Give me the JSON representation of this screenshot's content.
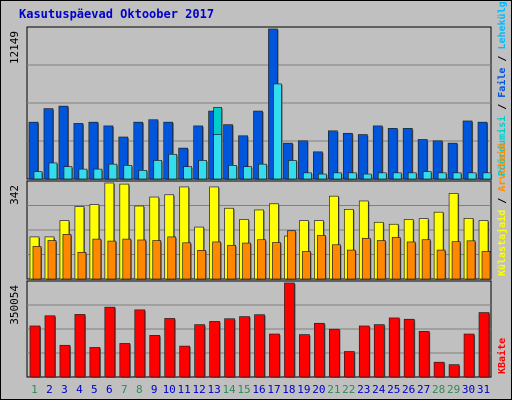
{
  "title": "Kasutuspäevad Oktoober 2017",
  "colors": {
    "background": "#c0c0c0",
    "title": "#0000cc",
    "grid": "#808080",
    "weekday": "#0000cc",
    "weekend": "#2e8b57"
  },
  "chart_data": [
    {
      "type": "bar",
      "name": "top",
      "y_tick_label": "12149",
      "ylim": [
        0,
        12149
      ],
      "categories": [
        "1",
        "2",
        "3",
        "4",
        "5",
        "6",
        "7",
        "8",
        "9",
        "10",
        "11",
        "12",
        "13",
        "14",
        "15",
        "16",
        "17",
        "18",
        "19",
        "20",
        "21",
        "22",
        "23",
        "24",
        "25",
        "26",
        "27",
        "28",
        "29",
        "30",
        "31"
      ],
      "weekend_days": [
        "1",
        "7",
        "8",
        "14",
        "15",
        "21",
        "22",
        "28",
        "29"
      ],
      "legend": [
        "Pöördumisi",
        "Faile",
        "Lehekülgi"
      ],
      "legend_colors": [
        "#00cccc",
        "#0055dd",
        "#00bbff"
      ],
      "series": [
        {
          "color": "#0055dd",
          "values": [
            4600,
            5700,
            5900,
            4500,
            4600,
            4300,
            3400,
            4600,
            4800,
            4600,
            2500,
            4300,
            5500,
            4400,
            3500,
            5500,
            12149,
            2900,
            3100,
            2200,
            3900,
            3700,
            3600,
            4300,
            4100,
            4100,
            3200,
            3100,
            2900,
            4700,
            4600
          ]
        },
        {
          "color": "#00cccc",
          "values": [
            0,
            0,
            0,
            0,
            0,
            0,
            0,
            0,
            0,
            0,
            0,
            0,
            5800,
            0,
            0,
            0,
            0,
            0,
            0,
            0,
            0,
            0,
            0,
            0,
            0,
            0,
            0,
            0,
            0,
            0,
            0
          ]
        },
        {
          "color": "#33ddee",
          "values": [
            600,
            1300,
            1000,
            800,
            800,
            1200,
            1100,
            700,
            1500,
            2000,
            1000,
            1500,
            3600,
            1100,
            1000,
            1200,
            7700,
            1500,
            500,
            400,
            500,
            500,
            400,
            500,
            500,
            500,
            600,
            500,
            500,
            500,
            500
          ]
        }
      ]
    },
    {
      "type": "bar",
      "name": "middle",
      "y_tick_label": "342",
      "ylim": [
        0,
        342
      ],
      "legend": [
        "Külastajaid",
        "Arvuteid"
      ],
      "legend_colors": [
        "#ffff00",
        "#ff8c00"
      ],
      "series": [
        {
          "color": "#ffff00",
          "values": [
            150,
            150,
            208,
            258,
            265,
            342,
            338,
            260,
            292,
            300,
            328,
            185,
            328,
            252,
            212,
            246,
            268,
            153,
            208,
            208,
            295,
            248,
            278,
            202,
            195,
            212,
            215,
            238,
            305,
            216,
            208
          ]
        },
        {
          "color": "#ff8800",
          "values": [
            116,
            137,
            159,
            95,
            142,
            135,
            142,
            139,
            137,
            150,
            129,
            102,
            132,
            120,
            128,
            140,
            130,
            172,
            98,
            155,
            122,
            103,
            145,
            137,
            148,
            132,
            140,
            103,
            133,
            136,
            98
          ]
        }
      ]
    },
    {
      "type": "bar",
      "name": "bottom",
      "y_tick_label": "350054",
      "ylim": [
        0,
        350054
      ],
      "legend": [
        "KBaite"
      ],
      "legend_colors": [
        "#ff0000"
      ],
      "series": [
        {
          "color": "#ff0000",
          "values": [
            190000,
            228000,
            118000,
            233000,
            110000,
            260000,
            125000,
            250000,
            155000,
            218000,
            115000,
            195000,
            207000,
            217000,
            225000,
            232000,
            160000,
            350054,
            158000,
            200000,
            178000,
            95000,
            190000,
            195000,
            220000,
            215000,
            170000,
            55000,
            46000,
            160000,
            240000
          ]
        }
      ]
    }
  ]
}
